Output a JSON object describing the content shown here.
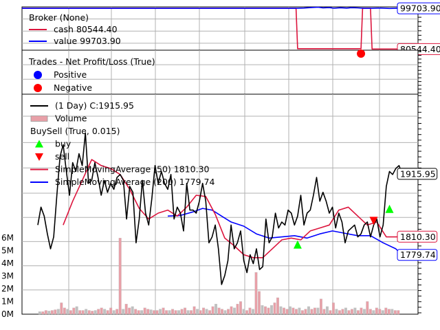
{
  "chart_data": [
    {
      "type": "line",
      "panel": "broker",
      "legend": [
        {
          "label": "Broker (None)",
          "color": "#dc143c",
          "marker": "none"
        },
        {
          "label": "cash 80544.40",
          "color": "#dc143c",
          "marker": "line"
        },
        {
          "label": "value 99703.90",
          "color": "#0000ff",
          "marker": "line"
        }
      ],
      "ylim": [
        80000,
        100400
      ],
      "x_range": [
        0,
        250
      ],
      "series": [
        {
          "name": "cash",
          "color": "#dc143c",
          "x": [
            0,
            173,
            174,
            214,
            215,
            220,
            221,
            250
          ],
          "y": [
            99703.9,
            99703.9,
            80700,
            80700,
            99703.9,
            99703.9,
            80544.4,
            80544.4
          ]
        },
        {
          "name": "value",
          "color": "#0000ff",
          "x": [
            0,
            173,
            178,
            183,
            187,
            190,
            194,
            197,
            201,
            205,
            208,
            212,
            216,
            221,
            226,
            232,
            238,
            244,
            250
          ],
          "y": [
            99703.9,
            99703.9,
            99850,
            100100,
            100250,
            99900,
            100050,
            99750,
            99980,
            99820,
            100000,
            99900,
            99703.9,
            99703.9,
            99850,
            99650,
            99800,
            99700,
            99703.9
          ]
        }
      ],
      "value_tags": [
        {
          "text": "99703.90",
          "value": 99703.9,
          "color": "#0000ff"
        },
        {
          "text": "80544.40",
          "value": 80544.4,
          "color": "#dc143c"
        }
      ]
    },
    {
      "type": "scatter",
      "panel": "trades",
      "legend": [
        {
          "label": "Trades - Net Profit/Loss (True)",
          "color": "#000000",
          "marker": "none"
        },
        {
          "label": "Positive",
          "color": "#0000ff",
          "marker": "circle"
        },
        {
          "label": "Negative",
          "color": "#ff0000",
          "marker": "circle"
        }
      ],
      "ylim": [
        -1,
        1
      ],
      "x_range": [
        0,
        250
      ],
      "points": [
        {
          "x": 214,
          "y": 0,
          "color": "#ff0000"
        }
      ]
    },
    {
      "type": "line",
      "panel": "price",
      "legend": [
        {
          "label": "(1 Day) C:1915.95",
          "color": "#000000",
          "marker": "line"
        },
        {
          "label": "Volume",
          "color": "#e8a0a8",
          "marker": "box"
        },
        {
          "label": "BuySell (True, 0.015)",
          "color": "#000000",
          "marker": "none"
        },
        {
          "label": "buy",
          "color": "#00ff00",
          "marker": "tri-up"
        },
        {
          "label": "sell",
          "color": "#ff0000",
          "marker": "tri-down"
        },
        {
          "label": "SimpleMovingAverage (50) 1810.30",
          "color": "#dc143c",
          "marker": "line"
        },
        {
          "label": "SimpleMovingAverage (200) 1779.74",
          "color": "#0000ff",
          "marker": "line"
        }
      ],
      "ylim": [
        1680,
        2050
      ],
      "x_range": [
        0,
        250
      ],
      "close": {
        "x": [
          10,
          12,
          14,
          16,
          18,
          20,
          22,
          24,
          26,
          28,
          30,
          32,
          34,
          36,
          38,
          40,
          42,
          44,
          46,
          48,
          50,
          52,
          54,
          56,
          58,
          60,
          62,
          64,
          66,
          68,
          70,
          72,
          74,
          76,
          78,
          80,
          82,
          84,
          86,
          88,
          90,
          92,
          94,
          96,
          98,
          100,
          102,
          104,
          106,
          108,
          110,
          112,
          114,
          116,
          118,
          120,
          122,
          124,
          126,
          128,
          130,
          132,
          134,
          136,
          138,
          140,
          142,
          144,
          146,
          148,
          150,
          152,
          154,
          156,
          158,
          160,
          162,
          164,
          166,
          168,
          170,
          172,
          174,
          176,
          178,
          180,
          182,
          184,
          186,
          188,
          190,
          192,
          194,
          196,
          198,
          200,
          202,
          204,
          206,
          208,
          210,
          212,
          214,
          216,
          218,
          220,
          222,
          224,
          226,
          228,
          230,
          232,
          234,
          236,
          238,
          240
        ],
        "y": [
          1830,
          1860,
          1845,
          1815,
          1790,
          1810,
          1880,
          1945,
          1965,
          1920,
          1880,
          1935,
          1920,
          1950,
          1930,
          1985,
          1900,
          1905,
          1935,
          1910,
          1880,
          1905,
          1885,
          1900,
          1890,
          1910,
          1915,
          1905,
          1840,
          1895,
          1885,
          1800,
          1840,
          1905,
          1850,
          1830,
          1875,
          1930,
          1900,
          1920,
          1900,
          1890,
          1915,
          1840,
          1860,
          1850,
          1820,
          1900,
          1855,
          1855,
          1850,
          1870,
          1900,
          1870,
          1800,
          1810,
          1830,
          1790,
          1730,
          1745,
          1770,
          1830,
          1790,
          1800,
          1820,
          1770,
          1750,
          1780,
          1765,
          1790,
          1755,
          1760,
          1840,
          1800,
          1810,
          1850,
          1825,
          1835,
          1830,
          1855,
          1850,
          1830,
          1845,
          1880,
          1830,
          1850,
          1855,
          1880,
          1910,
          1870,
          1885,
          1870,
          1850,
          1860,
          1825,
          1850,
          1835,
          1800,
          1820,
          1825,
          1830,
          1810,
          1815,
          1830,
          1835,
          1810,
          1830,
          1840,
          1810,
          1830,
          1895,
          1920,
          1915,
          1925,
          1930,
          1915.95
        ]
      },
      "sma50": {
        "x": [
          26,
          32,
          38,
          44,
          50,
          56,
          62,
          68,
          74,
          80,
          86,
          92,
          98,
          104,
          110,
          116,
          122,
          128,
          134,
          140,
          146,
          152,
          158,
          164,
          170,
          176,
          182,
          188,
          194,
          200,
          206,
          212,
          218,
          224,
          230,
          236,
          240
        ],
        "y": [
          1830,
          1870,
          1905,
          1940,
          1930,
          1925,
          1915,
          1890,
          1858,
          1840,
          1850,
          1855,
          1845,
          1860,
          1880,
          1878,
          1848,
          1808,
          1795,
          1780,
          1775,
          1775,
          1790,
          1805,
          1808,
          1805,
          1820,
          1825,
          1830,
          1855,
          1860,
          1845,
          1830,
          1835,
          1810,
          1810,
          1810.3
        ]
      },
      "sma200": {
        "x": [
          92,
          100,
          108,
          114,
          120,
          126,
          132,
          140,
          148,
          156,
          164,
          172,
          180,
          188,
          196,
          204,
          212,
          220,
          228,
          236,
          240
        ],
        "y": [
          1845,
          1846,
          1852,
          1858,
          1855,
          1845,
          1835,
          1828,
          1815,
          1808,
          1810,
          1812,
          1808,
          1815,
          1820,
          1816,
          1812,
          1812,
          1800,
          1790,
          1779.74
        ]
      },
      "buy": [
        {
          "x": 174,
          "y": 1796
        },
        {
          "x": 232,
          "y": 1856
        }
      ],
      "sell": [
        {
          "x": 222,
          "y": 1838
        }
      ],
      "value_tags": [
        {
          "text": "1915.95",
          "value": 1915.95,
          "color": "#000000"
        },
        {
          "text": "1810.30",
          "value": 1810.3,
          "color": "#dc143c"
        },
        {
          "text": "1779.74",
          "value": 1779.74,
          "color": "#0000ff"
        }
      ],
      "volume_tick_labels": [
        "6M",
        "5M",
        "4M",
        "3M",
        "2M",
        "1M",
        "0M"
      ],
      "volume_ylim": [
        0,
        6.5
      ],
      "volume": [
        0.2,
        0.2,
        0.3,
        0.25,
        0.3,
        0.35,
        0.4,
        0.9,
        0.5,
        0.4,
        0.3,
        0.5,
        0.6,
        0.3,
        0.3,
        0.4,
        0.3,
        0.25,
        0.3,
        0.4,
        0.5,
        0.4,
        0.3,
        0.5,
        0.3,
        0.4,
        6.0,
        0.4,
        0.8,
        0.5,
        0.6,
        0.4,
        0.3,
        0.3,
        0.5,
        0.4,
        0.35,
        0.3,
        0.3,
        0.4,
        0.5,
        0.3,
        0.3,
        0.4,
        0.3,
        0.3,
        0.4,
        0.5,
        0.3,
        0.3,
        0.6,
        0.4,
        0.3,
        0.5,
        0.4,
        0.3,
        0.6,
        0.8,
        0.5,
        0.4,
        0.3,
        0.4,
        0.6,
        0.5,
        0.8,
        1.0,
        0.4,
        0.3,
        0.5,
        0.4,
        3.3,
        1.8,
        0.7,
        0.6,
        0.5,
        0.7,
        0.9,
        1.3,
        0.6,
        0.5,
        0.4,
        0.6,
        0.5,
        0.4,
        0.5,
        0.3,
        0.4,
        0.6,
        0.4,
        0.5,
        0.5,
        1.2,
        0.4,
        0.6,
        0.3,
        0.9,
        0.4,
        0.3,
        0.4,
        0.5,
        0.3,
        0.4,
        0.5,
        0.3,
        0.5,
        0.4,
        1.0,
        0.4,
        0.3,
        0.5,
        0.4,
        0.3,
        0.5,
        0.4,
        0.4,
        0.3,
        0.3
      ]
    }
  ]
}
